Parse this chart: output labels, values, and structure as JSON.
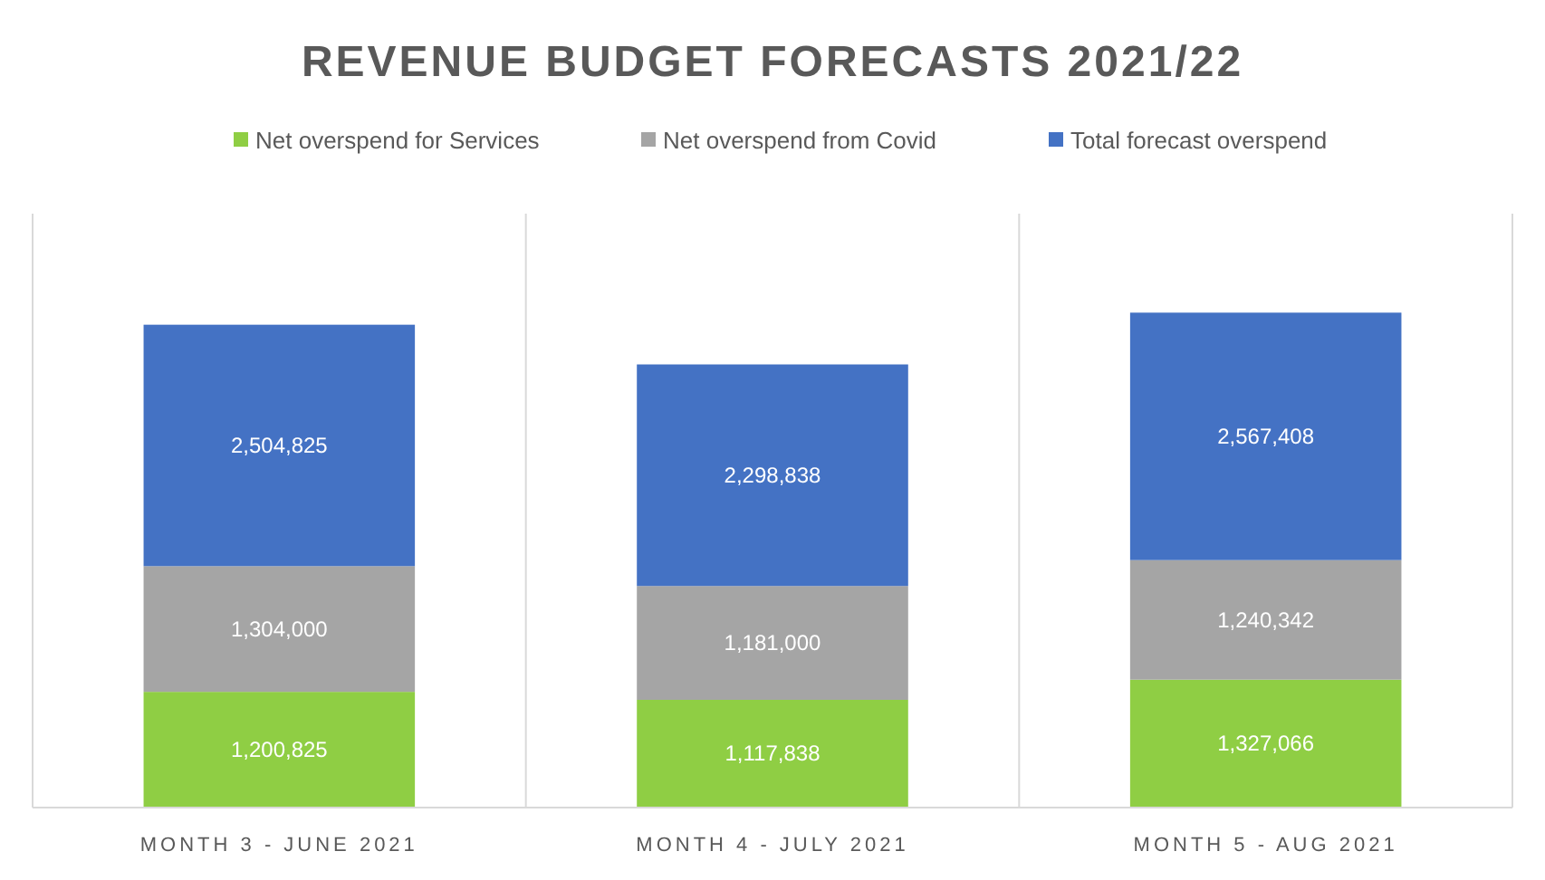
{
  "chart_data": {
    "type": "bar",
    "title": "REVENUE BUDGET FORECASTS 2021/22",
    "categories": [
      "MONTH 3 - JUNE 2021",
      "MONTH 4 - JULY 2021",
      "MONTH 5 - AUG 2021"
    ],
    "series": [
      {
        "name": "Net overspend for Services",
        "color": "#8fce44",
        "values": [
          1200825,
          1117838,
          1327066
        ],
        "value_labels": [
          "1,200,825",
          "1,117,838",
          "1,327,066"
        ]
      },
      {
        "name": "Net overspend from Covid",
        "color": "#a5a5a5",
        "values": [
          1304000,
          1181000,
          1240342
        ],
        "value_labels": [
          "1,304,000",
          "1,181,000",
          "1,240,342"
        ]
      },
      {
        "name": "Total forecast overspend",
        "color": "#4472c4",
        "values": [
          2504825,
          2298838,
          2567408
        ],
        "value_labels": [
          "2,504,825",
          "2,298,838",
          "2,567,408"
        ]
      }
    ],
    "stacked": true,
    "grid": "x",
    "legend": "top"
  }
}
